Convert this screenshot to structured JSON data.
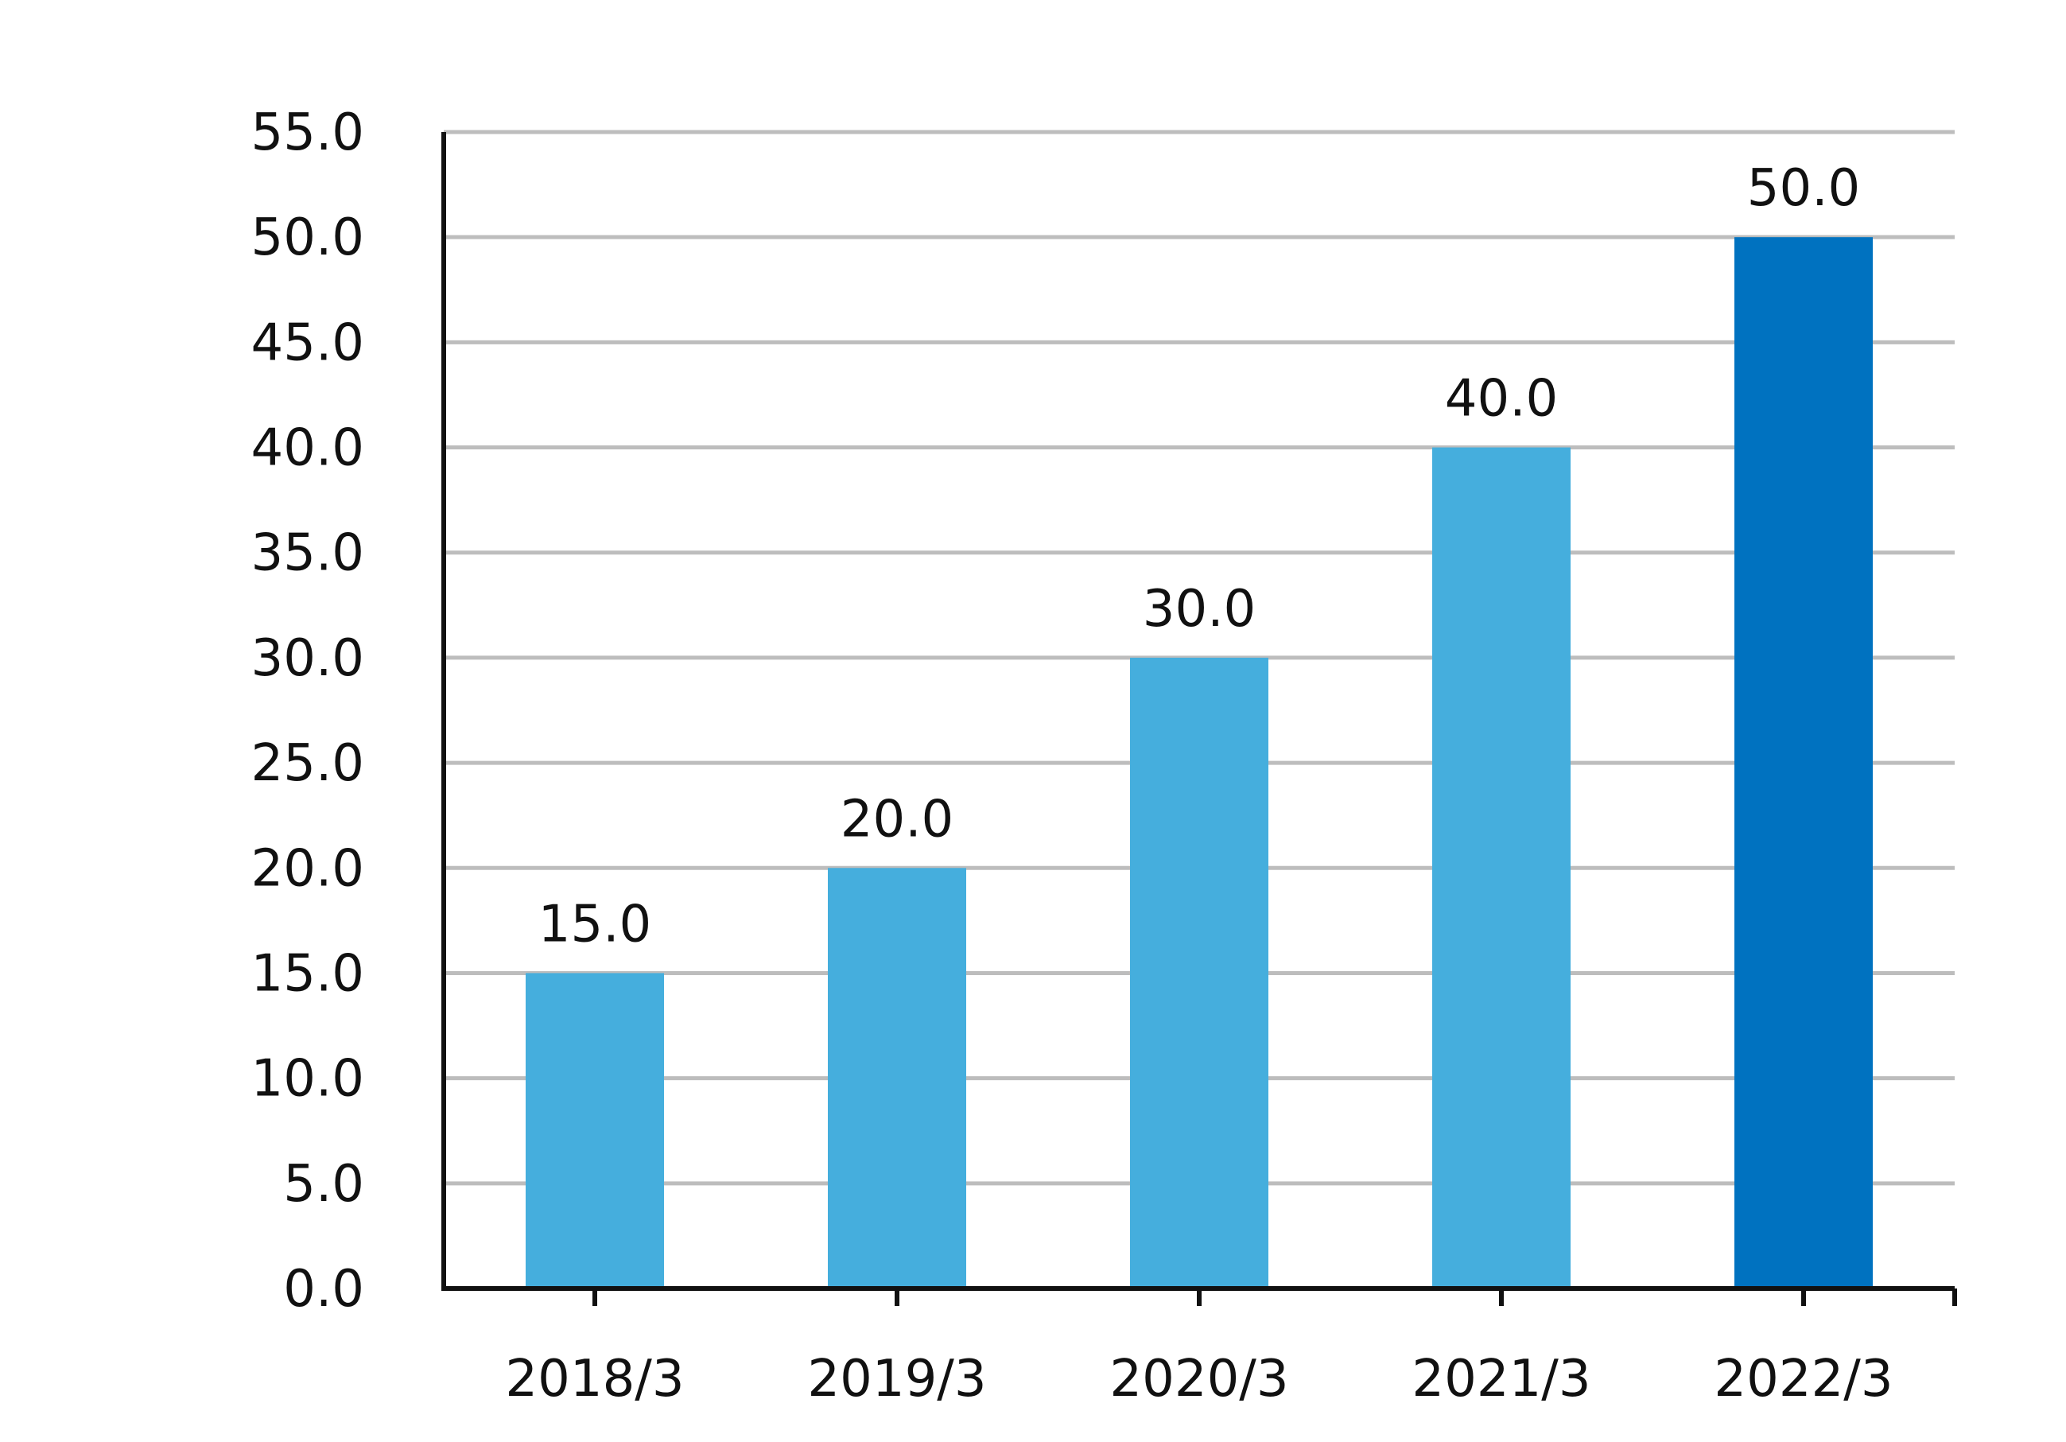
{
  "chart_data": {
    "type": "bar",
    "title": "",
    "xlabel": "",
    "ylabel": "",
    "categories": [
      "2018/3",
      "2019/3",
      "2020/3",
      "2021/3",
      "2022/3"
    ],
    "values": [
      15.0,
      20.0,
      30.0,
      40.0,
      50.0
    ],
    "data_labels": [
      "15.0",
      "20.0",
      "30.0",
      "40.0",
      "50.0"
    ],
    "ylim": [
      0,
      55
    ],
    "y_ticks": [
      0,
      5,
      10,
      15,
      20,
      25,
      30,
      35,
      40,
      45,
      50,
      55
    ],
    "y_tick_labels": [
      "0.0",
      "5.0",
      "10.0",
      "15.0",
      "20.0",
      "25.0",
      "30.0",
      "35.0",
      "40.0",
      "45.0",
      "50.0",
      "55.0"
    ],
    "grid": true,
    "legend": "none",
    "colors": {
      "bar": "#45aedd",
      "highlight_bar": "#0072c0",
      "grid": "#bdbdbd",
      "axis": "#111111"
    },
    "highlight_index": 4
  }
}
